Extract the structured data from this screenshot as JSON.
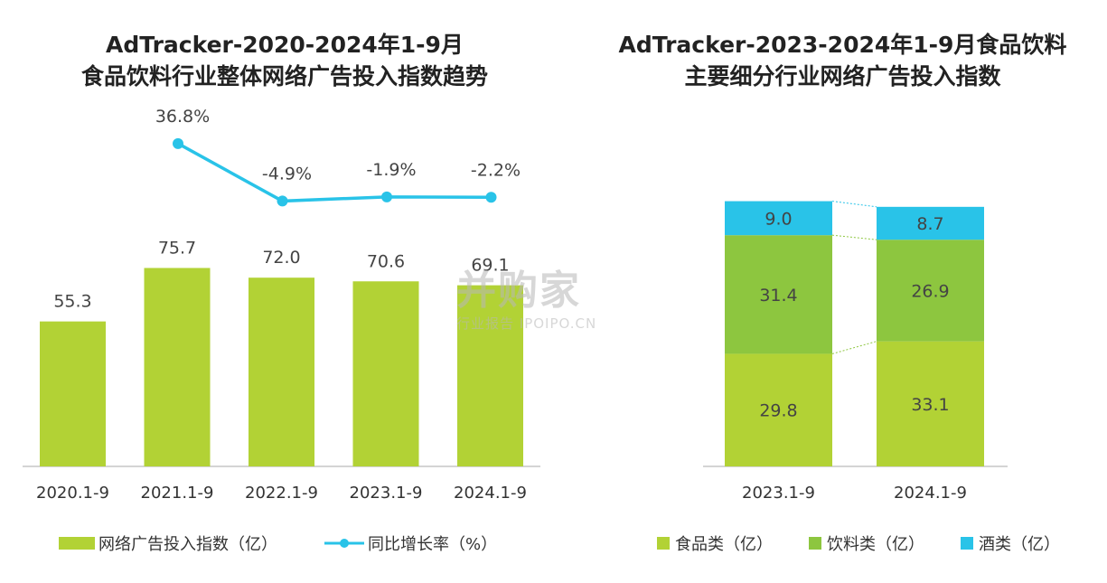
{
  "chart_data": [
    {
      "type": "bar",
      "title_lines": [
        "AdTracker-2020-2024年1-9月",
        "食品饮料行业整体网络广告投入指数趋势"
      ],
      "categories": [
        "2020.1-9",
        "2021.1-9",
        "2022.1-9",
        "2023.1-9",
        "2024.1-9"
      ],
      "series": [
        {
          "name": "网络广告投入指数（亿）",
          "type": "bar",
          "values": [
            55.3,
            75.7,
            72.0,
            70.6,
            69.1
          ],
          "labels": [
            "55.3",
            "75.7",
            "72.0",
            "70.6",
            "69.1"
          ],
          "color": "#b2d235"
        },
        {
          "name": "同比增长率（%）",
          "type": "line",
          "values": [
            null,
            36.8,
            -4.9,
            -1.9,
            -2.2
          ],
          "labels": [
            "",
            "36.8%",
            "-4.9%",
            "-1.9%",
            "-2.2%"
          ],
          "color": "#29c3e8"
        }
      ],
      "legend_position": "bottom",
      "grid": false
    },
    {
      "type": "bar",
      "stacked": true,
      "title_lines": [
        "AdTracker-2023-2024年1-9月食品饮料",
        "主要细分行业网络广告投入指数"
      ],
      "categories": [
        "2023.1-9",
        "2024.1-9"
      ],
      "series": [
        {
          "name": "食品类（亿）",
          "values": [
            29.8,
            33.1
          ],
          "labels": [
            "29.8",
            "33.1"
          ],
          "color": "#b2d235"
        },
        {
          "name": "饮料类（亿）",
          "values": [
            31.4,
            26.9
          ],
          "labels": [
            "31.4",
            "26.9"
          ],
          "color": "#8dc63f"
        },
        {
          "name": "酒类（亿）",
          "values": [
            9.0,
            8.7
          ],
          "labels": [
            "9.0",
            "8.7"
          ],
          "color": "#29c3e8"
        }
      ],
      "legend_position": "bottom",
      "grid": false
    }
  ],
  "watermark": {
    "main": "并购家",
    "sub": "行业报告 IPOIPO.CN"
  }
}
